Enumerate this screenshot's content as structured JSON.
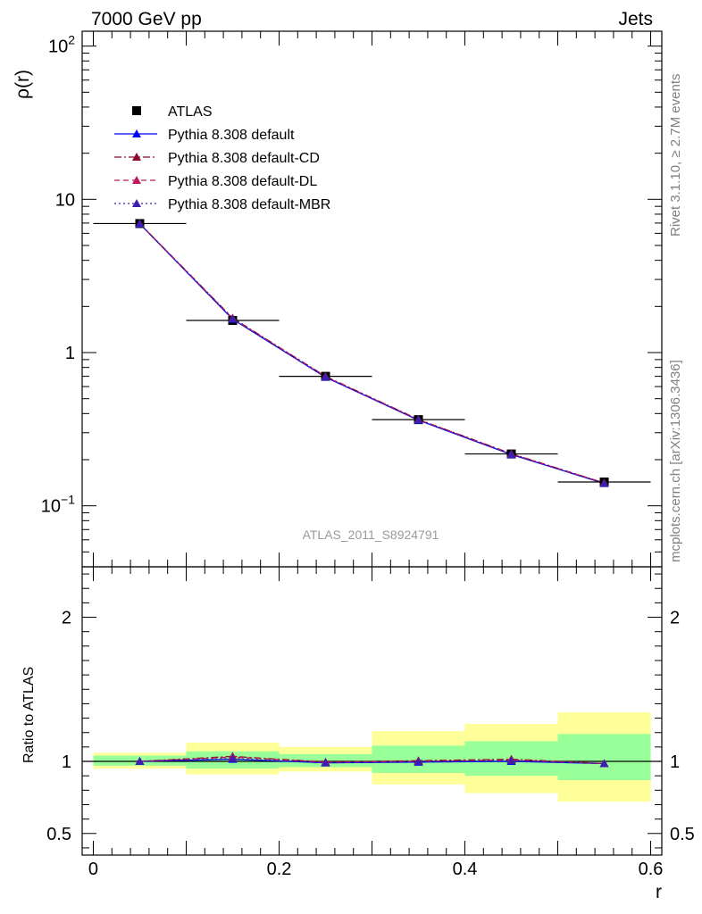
{
  "header": {
    "left": "7000 GeV pp",
    "right": "Jets"
  },
  "side_labels": {
    "rivet": "Rivet 3.1.10, ≥ 2.7M events",
    "mcplots": "mcplots.cern.ch [arXiv:1306.3436]"
  },
  "watermark": "ATLAS_2011_S8924791",
  "chart_data": [
    {
      "type": "line",
      "panel": "main",
      "ylabel": "ρ(r)",
      "yscale": "log",
      "ylim": [
        0.04,
        125
      ],
      "xlim": [
        -0.012,
        0.612
      ],
      "y_tick_labels": [
        {
          "v": 100,
          "base": "10",
          "exp": "2"
        },
        {
          "v": 10,
          "base": "10",
          "exp": ""
        },
        {
          "v": 1,
          "base": "1",
          "exp": ""
        },
        {
          "v": 0.1,
          "base": "10",
          "exp": "−1"
        }
      ],
      "x": [
        0.05,
        0.15,
        0.25,
        0.35,
        0.45,
        0.55
      ],
      "x_err": 0.05,
      "series": [
        {
          "name": "ATLAS",
          "marker": "square",
          "color": "#000000",
          "values": [
            6.95,
            1.62,
            0.7,
            0.365,
            0.218,
            0.143
          ]
        },
        {
          "name": "Pythia 8.308 default",
          "marker": "triangle",
          "color": "#0000ff",
          "line": "solid",
          "values": [
            6.92,
            1.65,
            0.69,
            0.362,
            0.216,
            0.14
          ]
        },
        {
          "name": "Pythia 8.308 default-CD",
          "marker": "triangle",
          "color": "#8b0a2a",
          "line": "dashdot",
          "values": [
            6.95,
            1.68,
            0.7,
            0.366,
            0.219,
            0.141
          ]
        },
        {
          "name": "Pythia 8.308 default-DL",
          "marker": "triangle",
          "color": "#c2185b",
          "line": "dashed",
          "values": [
            6.94,
            1.67,
            0.695,
            0.365,
            0.218,
            0.141
          ]
        },
        {
          "name": "Pythia 8.308 default-MBR",
          "marker": "triangle",
          "color": "#3b1fb0",
          "line": "dotted",
          "values": [
            6.93,
            1.66,
            0.692,
            0.363,
            0.217,
            0.14
          ]
        }
      ]
    },
    {
      "type": "line",
      "panel": "ratio",
      "ylabel": "Ratio to ATLAS",
      "xlabel": "r",
      "ylim": [
        0.35,
        2.35
      ],
      "xlim": [
        -0.012,
        0.612
      ],
      "y_ticks": [
        0.5,
        1,
        2
      ],
      "y_tick_labels": [
        "0.5",
        "1",
        "2"
      ],
      "x_ticks": [
        0,
        0.2,
        0.4,
        0.6
      ],
      "x_tick_labels": [
        "0",
        "0.2",
        "0.4",
        "0.6"
      ],
      "bands": [
        {
          "x0": 0.0,
          "x1": 0.1,
          "yellow": [
            0.95,
            1.06
          ],
          "green": [
            0.97,
            1.04
          ]
        },
        {
          "x0": 0.1,
          "x1": 0.2,
          "yellow": [
            0.91,
            1.13
          ],
          "green": [
            0.95,
            1.07
          ]
        },
        {
          "x0": 0.2,
          "x1": 0.3,
          "yellow": [
            0.93,
            1.1
          ],
          "green": [
            0.96,
            1.05
          ]
        },
        {
          "x0": 0.3,
          "x1": 0.4,
          "yellow": [
            0.84,
            1.21
          ],
          "green": [
            0.92,
            1.11
          ]
        },
        {
          "x0": 0.4,
          "x1": 0.5,
          "yellow": [
            0.78,
            1.26
          ],
          "green": [
            0.9,
            1.14
          ]
        },
        {
          "x0": 0.5,
          "x1": 0.6,
          "yellow": [
            0.72,
            1.34
          ],
          "green": [
            0.87,
            1.19
          ]
        }
      ],
      "x": [
        0.05,
        0.15,
        0.25,
        0.35,
        0.45,
        0.55
      ],
      "series": [
        {
          "name": "Pythia 8.308 default",
          "color": "#0000ff",
          "line": "solid",
          "values": [
            1.0,
            1.015,
            0.99,
            0.995,
            1.0,
            0.985
          ]
        },
        {
          "name": "Pythia 8.308 default-CD",
          "color": "#8b0a2a",
          "line": "dashdot",
          "values": [
            1.0,
            1.035,
            0.995,
            1.005,
            1.015,
            0.985
          ]
        },
        {
          "name": "Pythia 8.308 default-DL",
          "color": "#c2185b",
          "line": "dashed",
          "values": [
            1.0,
            1.03,
            0.995,
            1.0,
            1.01,
            0.985
          ]
        },
        {
          "name": "Pythia 8.308 default-MBR",
          "color": "#3b1fb0",
          "line": "dotted",
          "values": [
            1.0,
            1.02,
            0.99,
            0.998,
            1.005,
            0.985
          ]
        }
      ]
    }
  ]
}
